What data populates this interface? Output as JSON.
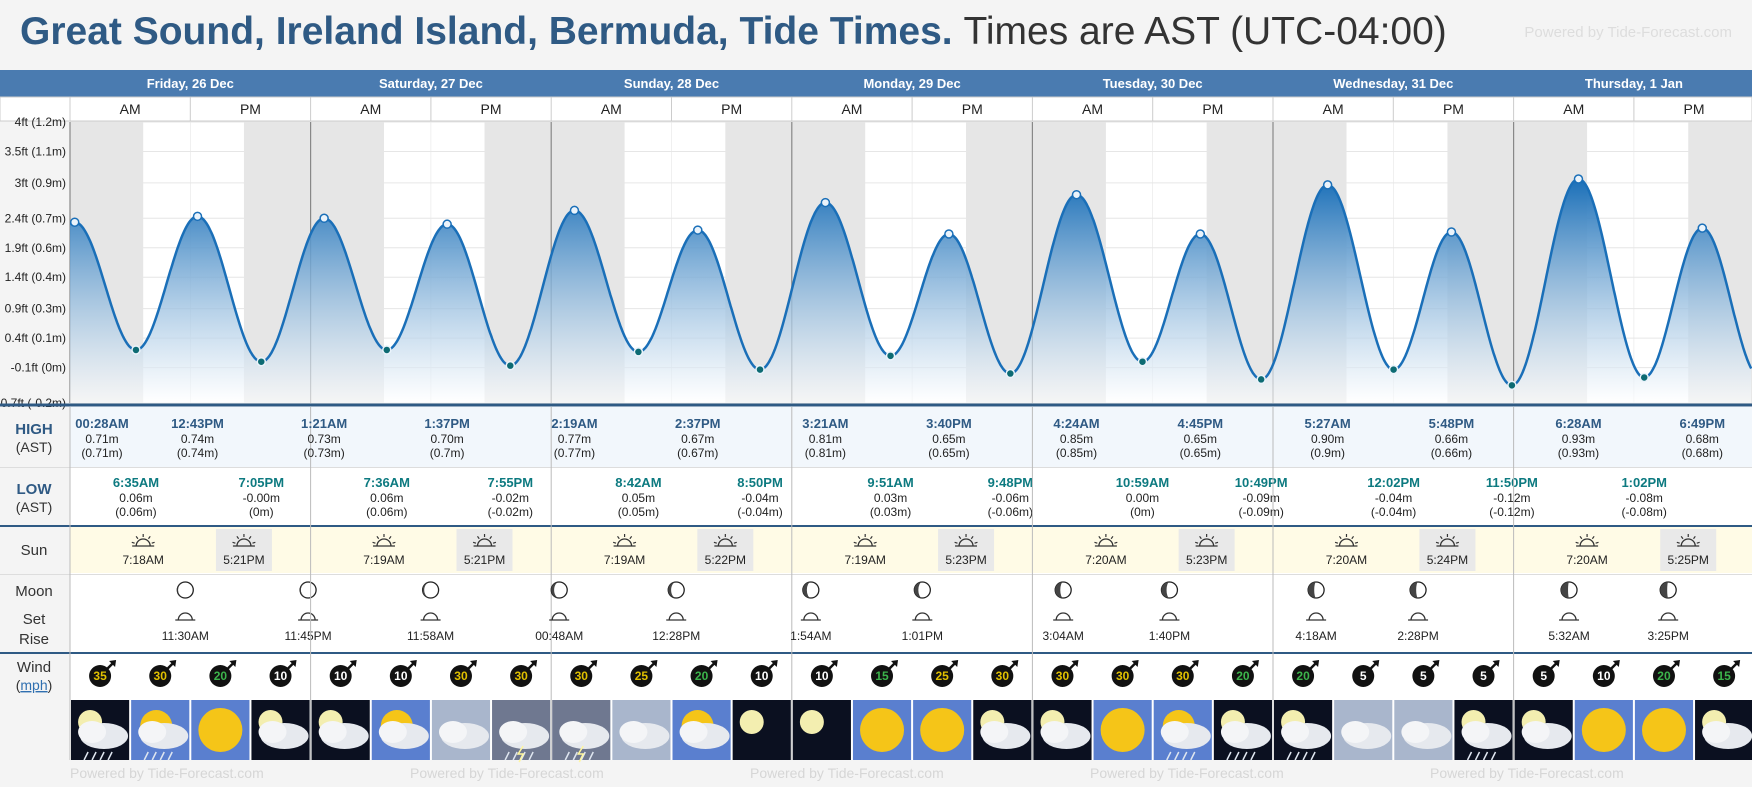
{
  "header": {
    "title": "Great Sound, Ireland Island, Bermuda, Tide Times.",
    "timezone": "Times are AST (UTC-04:00)",
    "brand": "Powered by Tide-Forecast.com",
    "brand_bottom": "Powered by Tide-Forecast.com"
  },
  "row_labels": {
    "high": "HIGH",
    "high_tz": "(AST)",
    "low": "LOW",
    "low_tz": "(AST)",
    "sun": "Sun",
    "moon": "Moon",
    "set": "Set",
    "rise": "Rise",
    "wind": "Wind",
    "wind_unit": "mph"
  },
  "ampm": [
    "AM",
    "PM"
  ],
  "colors": {
    "header_blue": "#4a7bb0",
    "accent": "#2f5a84",
    "wave": "#1a6fb8",
    "sun_row": "#fffbe6",
    "night": "#e6e6e6"
  },
  "chart_data": {
    "type": "area",
    "title": "Great Sound, Ireland Island, Bermuda, Tide Times.",
    "y_ticks": [
      "4ft (1.2m)",
      "3.5ft (1.1m)",
      "3ft (0.9m)",
      "2.4ft (0.7m)",
      "1.9ft (0.6m)",
      "1.4ft (0.4m)",
      "0.9ft (0.3m)",
      "0.4ft (0.1m)",
      "-0.1ft (0m)",
      "-0.7ft (-0.2m)"
    ],
    "y_tick_values_m": [
      1.22,
      1.07,
      0.91,
      0.73,
      0.58,
      0.43,
      0.27,
      0.12,
      -0.03,
      -0.21
    ],
    "ylim_m": [
      -0.21,
      1.22
    ],
    "x_start": "2025-12-26T00:00",
    "days": [
      {
        "label": "Friday, 26 Dec",
        "highs": [
          {
            "time": "00:28AM",
            "t": 0.47,
            "m": 0.71,
            "h1": "0.71m",
            "h2": "(0.71m)"
          },
          {
            "time": "12:43PM",
            "t": 12.72,
            "m": 0.74,
            "h1": "0.74m",
            "h2": "(0.74m)"
          }
        ],
        "lows": [
          {
            "time": "6:35AM",
            "t": 6.58,
            "m": 0.06,
            "h1": "0.06m",
            "h2": "(0.06m)"
          },
          {
            "time": "7:05PM",
            "t": 19.08,
            "m": 0.0,
            "h1": "-0.00m",
            "h2": "(0m)"
          }
        ],
        "sunrise": "7:18AM",
        "sunrise_h": 7.3,
        "sunset": "5:21PM",
        "sunset_h": 17.35,
        "moonrise": "11:30AM",
        "moonrise_h": 11.5,
        "moonset": "11:45PM",
        "moonset_h": 23.75,
        "wind": [
          35,
          30,
          20,
          10
        ]
      },
      {
        "label": "Saturday, 27 Dec",
        "highs": [
          {
            "time": "1:21AM",
            "t": 1.35,
            "m": 0.73,
            "h1": "0.73m",
            "h2": "(0.73m)"
          },
          {
            "time": "1:37PM",
            "t": 13.62,
            "m": 0.7,
            "h1": "0.70m",
            "h2": "(0.7m)"
          }
        ],
        "lows": [
          {
            "time": "7:36AM",
            "t": 7.6,
            "m": 0.06,
            "h1": "0.06m",
            "h2": "(0.06m)"
          },
          {
            "time": "7:55PM",
            "t": 19.92,
            "m": -0.02,
            "h1": "-0.02m",
            "h2": "(-0.02m)"
          }
        ],
        "sunrise": "7:19AM",
        "sunrise_h": 7.32,
        "sunset": "5:21PM",
        "sunset_h": 17.35,
        "moonrise": "11:58AM",
        "moonrise_h": 11.97,
        "moonset": "",
        "moonset_h": null,
        "wind": [
          10,
          10,
          30,
          30
        ]
      },
      {
        "label": "Sunday, 28 Dec",
        "highs": [
          {
            "time": "2:19AM",
            "t": 2.32,
            "m": 0.77,
            "h1": "0.77m",
            "h2": "(0.77m)"
          },
          {
            "time": "2:37PM",
            "t": 14.62,
            "m": 0.67,
            "h1": "0.67m",
            "h2": "(0.67m)"
          }
        ],
        "lows": [
          {
            "time": "8:42AM",
            "t": 8.7,
            "m": 0.05,
            "h1": "0.05m",
            "h2": "(0.05m)"
          },
          {
            "time": "8:50PM",
            "t": 20.83,
            "m": -0.04,
            "h1": "-0.04m",
            "h2": "(-0.04m)"
          }
        ],
        "sunrise": "7:19AM",
        "sunrise_h": 7.32,
        "sunset": "5:22PM",
        "sunset_h": 17.37,
        "moonrise": "12:28PM",
        "moonrise_h": 12.47,
        "moonset": "00:48AM",
        "moonset_h": 0.8,
        "wind": [
          30,
          25,
          20,
          10
        ]
      },
      {
        "label": "Monday, 29 Dec",
        "highs": [
          {
            "time": "3:21AM",
            "t": 3.35,
            "m": 0.81,
            "h1": "0.81m",
            "h2": "(0.81m)"
          },
          {
            "time": "3:40PM",
            "t": 15.67,
            "m": 0.65,
            "h1": "0.65m",
            "h2": "(0.65m)"
          }
        ],
        "lows": [
          {
            "time": "9:51AM",
            "t": 9.85,
            "m": 0.03,
            "h1": "0.03m",
            "h2": "(0.03m)"
          },
          {
            "time": "9:48PM",
            "t": 21.8,
            "m": -0.06,
            "h1": "-0.06m",
            "h2": "(-0.06m)"
          }
        ],
        "sunrise": "7:19AM",
        "sunrise_h": 7.32,
        "sunset": "5:23PM",
        "sunset_h": 17.38,
        "moonrise": "1:01PM",
        "moonrise_h": 13.02,
        "moonset": "1:54AM",
        "moonset_h": 1.9,
        "wind": [
          10,
          15,
          25,
          30
        ]
      },
      {
        "label": "Tuesday, 30 Dec",
        "highs": [
          {
            "time": "4:24AM",
            "t": 4.4,
            "m": 0.85,
            "h1": "0.85m",
            "h2": "(0.85m)"
          },
          {
            "time": "4:45PM",
            "t": 16.75,
            "m": 0.65,
            "h1": "0.65m",
            "h2": "(0.65m)"
          }
        ],
        "lows": [
          {
            "time": "10:59AM",
            "t": 10.98,
            "m": 0.0,
            "h1": "0.00m",
            "h2": "(0m)"
          },
          {
            "time": "10:49PM",
            "t": 22.82,
            "m": -0.09,
            "h1": "-0.09m",
            "h2": "(-0.09m)"
          }
        ],
        "sunrise": "7:20AM",
        "sunrise_h": 7.33,
        "sunset": "5:23PM",
        "sunset_h": 17.38,
        "moonrise": "1:40PM",
        "moonrise_h": 13.67,
        "moonset": "3:04AM",
        "moonset_h": 3.07,
        "wind": [
          30,
          30,
          30,
          20
        ]
      },
      {
        "label": "Wednesday, 31 Dec",
        "highs": [
          {
            "time": "5:27AM",
            "t": 5.45,
            "m": 0.9,
            "h1": "0.90m",
            "h2": "(0.9m)"
          },
          {
            "time": "5:48PM",
            "t": 17.8,
            "m": 0.66,
            "h1": "0.66m",
            "h2": "(0.66m)"
          }
        ],
        "lows": [
          {
            "time": "12:02PM",
            "t": 12.03,
            "m": -0.04,
            "h1": "-0.04m",
            "h2": "(-0.04m)"
          },
          {
            "time": "11:50PM",
            "t": 23.83,
            "m": -0.12,
            "h1": "-0.12m",
            "h2": "(-0.12m)"
          }
        ],
        "sunrise": "7:20AM",
        "sunrise_h": 7.33,
        "sunset": "5:24PM",
        "sunset_h": 17.4,
        "moonrise": "2:28PM",
        "moonrise_h": 14.47,
        "moonset": "4:18AM",
        "moonset_h": 4.3,
        "wind": [
          20,
          5,
          5,
          5
        ]
      },
      {
        "label": "Thursday, 1 Jan",
        "highs": [
          {
            "time": "6:28AM",
            "t": 6.47,
            "m": 0.93,
            "h1": "0.93m",
            "h2": "(0.93m)"
          },
          {
            "time": "6:49PM",
            "t": 18.82,
            "m": 0.68,
            "h1": "0.68m",
            "h2": "(0.68m)"
          }
        ],
        "lows": [
          {
            "time": "1:02PM",
            "t": 13.03,
            "m": -0.08,
            "h1": "-0.08m",
            "h2": "(-0.08m)"
          }
        ],
        "sunrise": "7:20AM",
        "sunrise_h": 7.33,
        "sunset": "5:25PM",
        "sunset_h": 17.42,
        "moonrise": "3:25PM",
        "moonrise_h": 15.42,
        "moonset": "5:32AM",
        "moonset_h": 5.53,
        "wind": [
          5,
          10,
          20,
          15
        ]
      }
    ],
    "weather_icons": [
      "cloud-rain-night",
      "cloud-rain-sun",
      "sun",
      "cloud-moon",
      "cloud-moon",
      "cloud-sun",
      "cloud",
      "thunderstorm",
      "thunderstorm",
      "cloud",
      "cloud-sun",
      "moon",
      "moon",
      "sun",
      "sun",
      "cloud-moon",
      "cloud-moon",
      "sun",
      "cloud-rain-sun",
      "cloud-rain-night",
      "cloud-rain-night",
      "cloud",
      "cloud",
      "cloud-rain-night",
      "cloud-moon",
      "sun",
      "sun",
      "cloud-moon"
    ]
  }
}
